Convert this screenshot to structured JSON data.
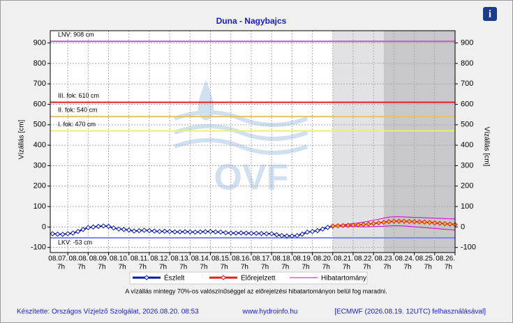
{
  "chart_data": {
    "type": "line",
    "title": "Duna - Nagybajcs",
    "ylabel": "Vízállás [cm]",
    "y2label": "Vízállás [cm]",
    "watermark": "OVF",
    "info_icon": "i",
    "ylim": [
      -125,
      960
    ],
    "yticks": [
      -100,
      0,
      100,
      200,
      300,
      400,
      500,
      600,
      700,
      800,
      900
    ],
    "xlim": [
      -0.86,
      19
    ],
    "xticks": [
      {
        "value": 0,
        "label": "08.07."
      },
      {
        "value": 1,
        "label": "08.08."
      },
      {
        "value": 2,
        "label": "08.09."
      },
      {
        "value": 3,
        "label": "08.10."
      },
      {
        "value": 4,
        "label": "08.11."
      },
      {
        "value": 5,
        "label": "08.12."
      },
      {
        "value": 6,
        "label": "08.13."
      },
      {
        "value": 7,
        "label": "08.14."
      },
      {
        "value": 8,
        "label": "08.15."
      },
      {
        "value": 9,
        "label": "08.16."
      },
      {
        "value": 10,
        "label": "08.17."
      },
      {
        "value": 11,
        "label": "08.18."
      },
      {
        "value": 12,
        "label": "08.19."
      },
      {
        "value": 13,
        "label": "08.20."
      },
      {
        "value": 14,
        "label": "08.21."
      },
      {
        "value": 15,
        "label": "08.22."
      },
      {
        "value": 16,
        "label": "08.23."
      },
      {
        "value": 17,
        "label": "08.24."
      },
      {
        "value": 18,
        "label": "08.25."
      },
      {
        "value": 19,
        "label": "08.26."
      }
    ],
    "xtick_sublabels": [
      "7h",
      "7h",
      "7h",
      "7h",
      "7h",
      "7h",
      "7h",
      "7h",
      "7h",
      "7h",
      "7h",
      "7h",
      "7h",
      "7h",
      "7h",
      "7h",
      "7h",
      "7h",
      "7h",
      "7h"
    ],
    "grid": true,
    "forecast_bands": [
      {
        "from": 13,
        "to": 15.5,
        "color": "#e2e2e6"
      },
      {
        "from": 15.5,
        "to": 19,
        "color": "#c8c8cc"
      }
    ],
    "thresholds": [
      {
        "label": "LNV: 908 cm",
        "value": 908,
        "color": "#d050d0"
      },
      {
        "label": "III. fok: 610 cm",
        "value": 610,
        "color": "#e02020"
      },
      {
        "label": "II. fok: 540 cm",
        "value": 540,
        "color": "#e8c070"
      },
      {
        "label": "I. fok: 470 cm",
        "value": 470,
        "color": "#f0ee70"
      },
      {
        "label": "LKV: -53 cm",
        "value": -53,
        "color": "#8080ff"
      }
    ],
    "series": [
      {
        "name": "Észlelt",
        "color": "#0a1aa8",
        "x": [
          -0.75,
          -0.5,
          -0.25,
          0,
          0.25,
          0.5,
          0.75,
          1,
          1.25,
          1.5,
          1.75,
          2,
          2.25,
          2.5,
          2.75,
          3,
          3.25,
          3.5,
          3.75,
          4,
          4.25,
          4.5,
          4.75,
          5,
          5.25,
          5.5,
          5.75,
          6,
          6.25,
          6.5,
          6.75,
          7,
          7.25,
          7.5,
          7.75,
          8,
          8.25,
          8.5,
          8.75,
          9,
          9.25,
          9.5,
          9.75,
          10,
          10.25,
          10.5,
          10.75,
          11,
          11.25,
          11.5,
          11.75,
          12,
          12.25,
          12.5,
          12.75,
          13
        ],
        "values": [
          -33,
          -35,
          -36,
          -33,
          -30,
          -22,
          -12,
          -3,
          0,
          3,
          5,
          3,
          -5,
          -10,
          -12,
          -15,
          -20,
          -18,
          -16,
          -18,
          -20,
          -22,
          -21,
          -22,
          -24,
          -24,
          -23,
          -24,
          -25,
          -24,
          -23,
          -22,
          -24,
          -25,
          -28,
          -30,
          -30,
          -29,
          -30,
          -31,
          -31,
          -32,
          -33,
          -33,
          -38,
          -42,
          -44,
          -44,
          -42,
          -35,
          -25,
          -22,
          -18,
          -10,
          -2,
          4
        ]
      },
      {
        "name": "Előrejelzett",
        "color": "#e02020",
        "x": [
          13,
          13.25,
          13.5,
          13.75,
          14,
          14.25,
          14.5,
          14.75,
          15,
          15.25,
          15.5,
          15.75,
          16,
          16.25,
          16.5,
          16.75,
          17,
          17.25,
          17.5,
          17.75,
          18,
          18.25,
          18.5,
          18.75,
          19
        ],
        "values": [
          5,
          6,
          7,
          8,
          9,
          10,
          12,
          14,
          17,
          20,
          23,
          26,
          28,
          28,
          28,
          27,
          26,
          25,
          24,
          22,
          20,
          18,
          16,
          14,
          12
        ]
      },
      {
        "name": "Hibatartomány",
        "color": "#cc00cc",
        "x": [
          13,
          13.25,
          13.5,
          13.75,
          14,
          14.25,
          14.5,
          14.75,
          15,
          15.25,
          15.5,
          15.75,
          16,
          16.25,
          16.5,
          16.75,
          17,
          17.25,
          17.5,
          17.75,
          18,
          18.25,
          18.5,
          18.75,
          19
        ],
        "upper": [
          5,
          8,
          11,
          14,
          17,
          20,
          24,
          28,
          33,
          38,
          43,
          48,
          50,
          50,
          49,
          48,
          47,
          46,
          45,
          44,
          43,
          42,
          41,
          40,
          39
        ],
        "lower": [
          5,
          4,
          3,
          3,
          2,
          2,
          1,
          1,
          2,
          3,
          4,
          5,
          6,
          6,
          5,
          3,
          1,
          -1,
          -3,
          -5,
          -7,
          -9,
          -11,
          -13,
          -15
        ]
      }
    ],
    "note": "A vízállás mintegy 70%-os valószínűséggel az előrejelzési hibatartományon belül fog maradni.",
    "footer": [
      "Készítette: Országos Vízjelző Szolgálat, 2026.08.20. 08:53",
      "www.hydroinfo.hu",
      "[ECMWF (2026.08.19. 12UTC) felhasználásával]"
    ]
  }
}
